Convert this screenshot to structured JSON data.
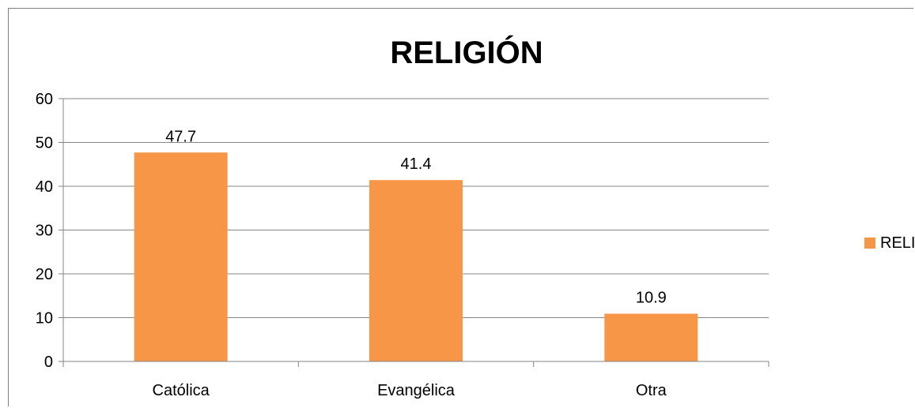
{
  "chart_data": {
    "type": "bar",
    "title": "RELIGIÓN",
    "categories": [
      "Católica",
      "Evangélica",
      "Otra"
    ],
    "series": [
      {
        "name": "RELIGIÓN",
        "values": [
          47.7,
          41.4,
          10.9
        ],
        "color": "#f79646"
      }
    ],
    "data_labels": [
      "47.7",
      "41.4",
      "10.9"
    ],
    "yticks": [
      0,
      10,
      20,
      30,
      40,
      50,
      60
    ],
    "ylim": [
      0,
      60
    ],
    "grid": true,
    "legend_position": "right",
    "axis_color": "#868686",
    "grid_color": "#868686",
    "text_color": "#000000"
  }
}
